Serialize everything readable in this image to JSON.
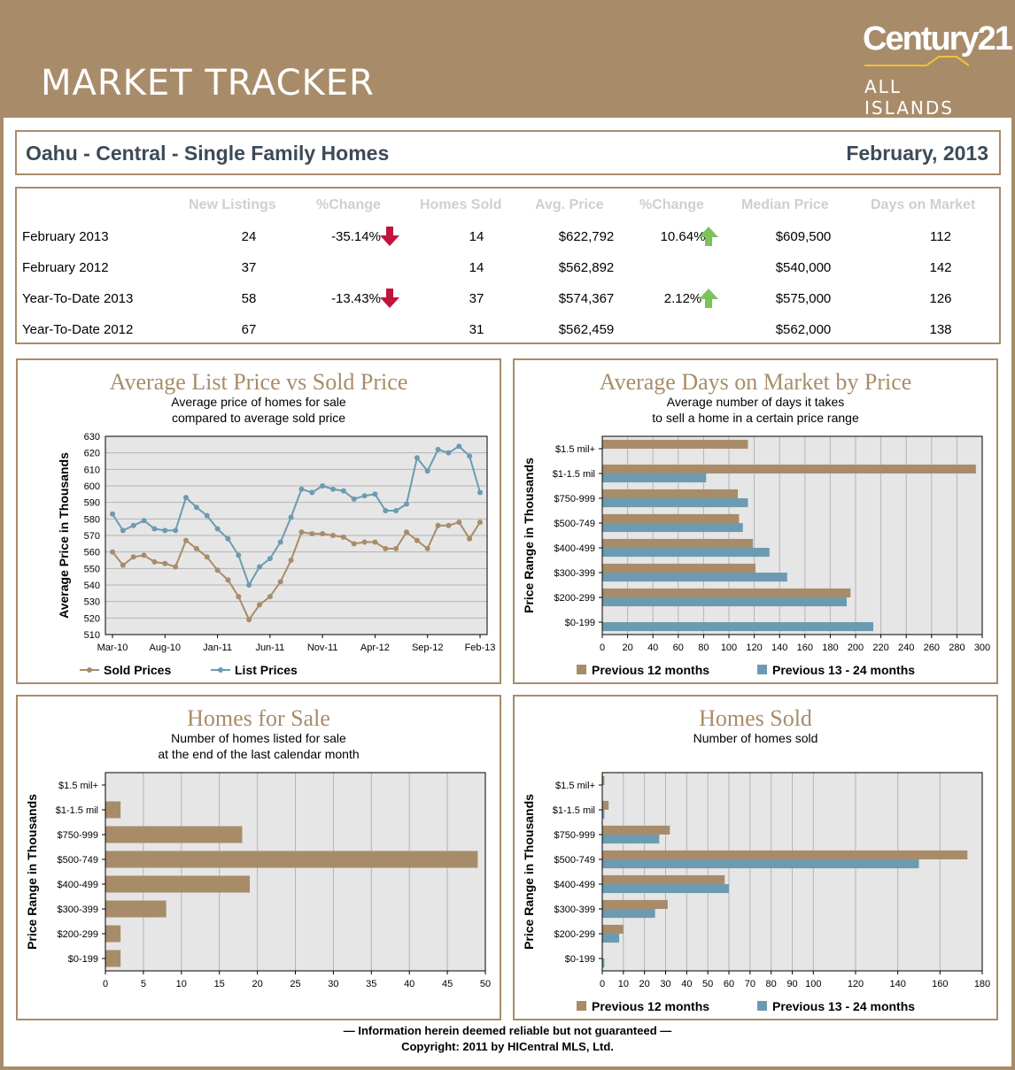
{
  "header": {
    "title": "MARKET TRACKER",
    "logo_brand": "Century21",
    "logo_sub": "ALL ISLANDS"
  },
  "titlebar": {
    "area": "Oahu - Central - Single Family Homes",
    "period": "February, 2013"
  },
  "stats": {
    "columns": [
      "New Listings",
      "%Change",
      "Homes Sold",
      "Avg. Price",
      "%Change",
      "Median Price",
      "Days on Market"
    ],
    "rows": [
      {
        "label": "February 2013",
        "new_listings": "24",
        "listings_change": "-35.14%",
        "listings_trend": "down",
        "homes_sold": "14",
        "avg_price": "$622,792",
        "price_change": "10.64%",
        "price_trend": "up",
        "median_price": "$609,500",
        "days_on_market": "112"
      },
      {
        "label": "February 2012",
        "new_listings": "37",
        "listings_change": "",
        "listings_trend": "",
        "homes_sold": "14",
        "avg_price": "$562,892",
        "price_change": "",
        "price_trend": "",
        "median_price": "$540,000",
        "days_on_market": "142"
      },
      {
        "label": "Year-To-Date 2013",
        "new_listings": "58",
        "listings_change": "-13.43%",
        "listings_trend": "down",
        "homes_sold": "37",
        "avg_price": "$574,367",
        "price_change": "2.12%",
        "price_trend": "up",
        "median_price": "$575,000",
        "days_on_market": "126"
      },
      {
        "label": "Year-To-Date 2012",
        "new_listings": "67",
        "listings_change": "",
        "listings_trend": "",
        "homes_sold": "31",
        "avg_price": "$562,459",
        "price_change": "",
        "price_trend": "",
        "median_price": "$562,000",
        "days_on_market": "138"
      }
    ],
    "arrow_colors": {
      "down": "#c0143c",
      "up": "#7cc35a"
    }
  },
  "colors": {
    "brand_tan": "#a88c6a",
    "series_blue": "#6c9bb1",
    "series_tan": "#a88c6a",
    "plot_bg": "#e6e6e6"
  },
  "chart_data": [
    {
      "type": "line",
      "title": "Average List Price vs Sold Price",
      "subtitle": [
        "Average price of homes for sale",
        "compared to average sold price"
      ],
      "xlabel": "",
      "ylabel": "Average Price in Thousands",
      "ylim": [
        510,
        630
      ],
      "yticks": [
        510,
        520,
        530,
        540,
        550,
        560,
        570,
        580,
        590,
        600,
        610,
        620,
        630
      ],
      "x_tick_labels": [
        "Mar-10",
        "Aug-10",
        "Jan-11",
        "Jun-11",
        "Nov-11",
        "Apr-12",
        "Sep-12",
        "Feb-13"
      ],
      "x_tick_every": 5,
      "grid": true,
      "legend": "bottom",
      "series": [
        {
          "name": "Sold Prices",
          "color": "#a88c6a",
          "values": [
            560,
            552,
            557,
            558,
            554,
            553,
            551,
            567,
            562,
            557,
            549,
            543,
            533,
            519,
            528,
            533,
            542,
            555,
            572,
            571,
            571,
            570,
            569,
            565,
            566,
            566,
            562,
            562,
            572,
            567,
            562,
            576,
            576,
            578,
            568,
            578
          ]
        },
        {
          "name": "List Prices",
          "color": "#6c9bb1",
          "values": [
            583,
            573,
            576,
            579,
            574,
            573,
            573,
            593,
            587,
            582,
            574,
            568,
            558,
            540,
            551,
            556,
            566,
            581,
            598,
            596,
            600,
            598,
            597,
            592,
            594,
            595,
            585,
            585,
            589,
            617,
            609,
            622,
            620,
            624,
            618,
            596
          ]
        }
      ]
    },
    {
      "type": "bar",
      "orientation": "horizontal",
      "title": "Average Days on Market by Price",
      "subtitle": [
        "Average number of days it takes",
        "to sell a home in a certain price range"
      ],
      "ylabel": "Price Range in Thousands",
      "categories": [
        "$1.5 mil+",
        "$1-1.5 mil",
        "$750-999",
        "$500-749",
        "$400-499",
        "$300-399",
        "$200-299",
        "$0-199"
      ],
      "xlim": [
        0,
        300
      ],
      "xticks": [
        0,
        20,
        40,
        60,
        80,
        100,
        120,
        140,
        160,
        180,
        200,
        220,
        240,
        260,
        280,
        300
      ],
      "grid": true,
      "legend": "bottom",
      "series": [
        {
          "name": "Previous 12 months",
          "color": "#a88c6a",
          "values": [
            115,
            295,
            107,
            108,
            119,
            121,
            196,
            0
          ]
        },
        {
          "name": "Previous 13 - 24 months",
          "color": "#6c9bb1",
          "values": [
            0,
            82,
            115,
            111,
            132,
            146,
            193,
            214
          ]
        }
      ]
    },
    {
      "type": "bar",
      "orientation": "horizontal",
      "title": "Homes for Sale",
      "subtitle": [
        "Number of homes listed for sale",
        "at the end of the last calendar month"
      ],
      "ylabel": "Price Range in Thousands",
      "categories": [
        "$1.5 mil+",
        "$1-1.5 mil",
        "$750-999",
        "$500-749",
        "$400-499",
        "$300-399",
        "$200-299",
        "$0-199"
      ],
      "xlim": [
        0,
        50
      ],
      "xticks": [
        0,
        5,
        10,
        15,
        20,
        25,
        30,
        35,
        40,
        45,
        50
      ],
      "grid": true,
      "legend": "none",
      "series": [
        {
          "name": "",
          "color": "#a88c6a",
          "values": [
            0,
            2,
            18,
            49,
            19,
            8,
            2,
            2
          ]
        }
      ]
    },
    {
      "type": "bar",
      "orientation": "horizontal",
      "title": "Homes Sold",
      "subtitle": [
        "Number of homes sold"
      ],
      "ylabel": "Price Range in Thousands",
      "categories": [
        "$1.5 mil+",
        "$1-1.5 mil",
        "$750-999",
        "$500-749",
        "$400-499",
        "$300-399",
        "$200-299",
        "$0-199"
      ],
      "xlim": [
        0,
        180
      ],
      "xticks": [
        0,
        10,
        20,
        30,
        40,
        50,
        60,
        70,
        80,
        90,
        100,
        120,
        140,
        160,
        180
      ],
      "grid": true,
      "legend": "bottom",
      "series": [
        {
          "name": "Previous 12 months",
          "color": "#a88c6a",
          "values": [
            1,
            3,
            32,
            173,
            58,
            31,
            10,
            0
          ]
        },
        {
          "name": "Previous 13 - 24 months",
          "color": "#6c9bb1",
          "values": [
            0,
            1,
            27,
            150,
            60,
            25,
            8,
            1
          ]
        }
      ]
    }
  ],
  "footer": {
    "line1": "— Information herein deemed reliable but not guaranteed —",
    "line2": "Copyright: 2011 by HICentral MLS, Ltd."
  }
}
